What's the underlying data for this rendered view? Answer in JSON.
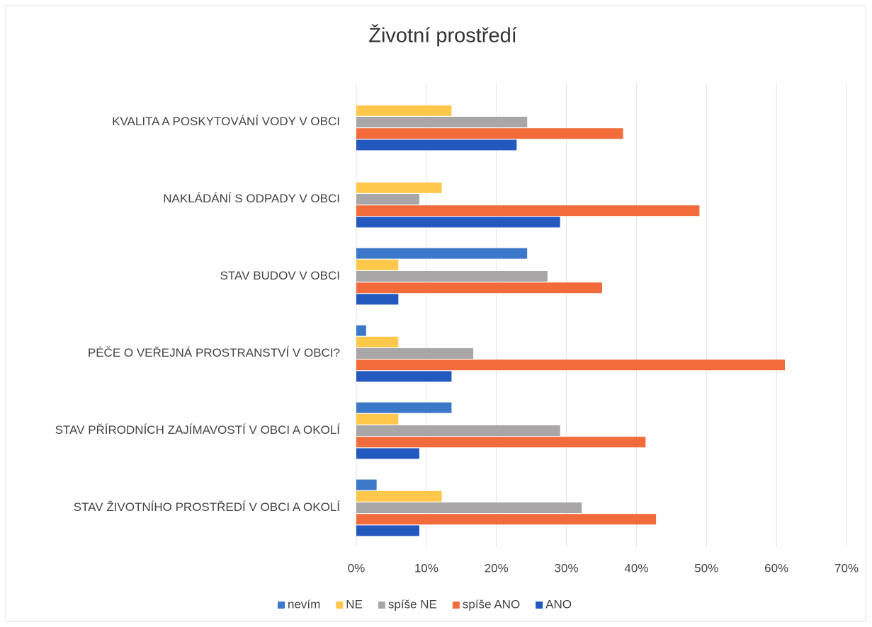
{
  "chart_data": {
    "type": "bar",
    "orientation": "horizontal",
    "title": "Životní prostředí",
    "categories": [
      "KVALITA A POSKYTOVÁNÍ VODY V OBCI",
      "NAKLÁDÁNÍ S ODPADY V OBCI",
      "STAV BUDOV V OBCI",
      "PÉČE O VEŘEJNÁ PROSTRANSTVÍ V OBCI?",
      "STAV PŘÍRODNÍCH ZAJÍMAVOSTÍ V OBCI A OKOLÍ",
      "STAV ŽIVOTNÍHO PROSTŘEDÍ V OBCI A OKOLÍ"
    ],
    "series": [
      {
        "name": "nevím",
        "color": "#3b78c9",
        "values": [
          0,
          0,
          24.4,
          1.4,
          13.6,
          2.9
        ]
      },
      {
        "name": "NE",
        "color": "#ffc84a",
        "values": [
          13.6,
          12.2,
          6.0,
          6.0,
          6.0,
          12.2
        ]
      },
      {
        "name": "spíše NE",
        "color": "#a8a6a6",
        "values": [
          24.4,
          9.0,
          27.3,
          16.7,
          29.1,
          32.2
        ]
      },
      {
        "name": "spíše ANO",
        "color": "#f26b3a",
        "values": [
          38.1,
          49.0,
          35.1,
          61.2,
          41.3,
          42.8
        ]
      },
      {
        "name": "ANO",
        "color": "#2358bf",
        "values": [
          22.9,
          29.1,
          6.0,
          13.6,
          9.0,
          9.0
        ]
      }
    ],
    "xlim": [
      0,
      70
    ],
    "xticks": [
      {
        "value": 0,
        "label": "0%"
      },
      {
        "value": 10,
        "label": "10%"
      },
      {
        "value": 20,
        "label": "20%"
      },
      {
        "value": 30,
        "label": "30%"
      },
      {
        "value": 40,
        "label": "40%"
      },
      {
        "value": 50,
        "label": "50%"
      },
      {
        "value": 60,
        "label": "60%"
      },
      {
        "value": 70,
        "label": "70%"
      }
    ],
    "grid": true,
    "legend": "bottom"
  }
}
